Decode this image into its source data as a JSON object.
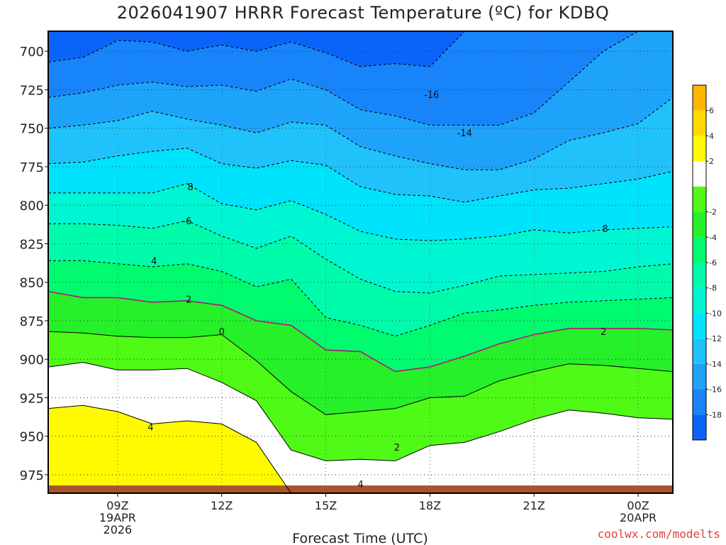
{
  "chart_data": {
    "type": "contour",
    "title": "2026041907 HRRR Forecast Temperature (ºC) for KDBQ",
    "xlabel": "Forecast Time (UTC)",
    "ylabel": "",
    "y_ticks": [
      700,
      725,
      750,
      775,
      800,
      825,
      850,
      875,
      900,
      925,
      950,
      975
    ],
    "ylim": [
      987,
      687
    ],
    "x_ticks": [
      {
        "hour": 9,
        "lines": [
          "09Z",
          "19APR",
          "2026"
        ]
      },
      {
        "hour": 12,
        "lines": [
          "12Z"
        ]
      },
      {
        "hour": 15,
        "lines": [
          "15Z"
        ]
      },
      {
        "hour": 18,
        "lines": [
          "18Z"
        ]
      },
      {
        "hour": 21,
        "lines": [
          "21Z"
        ]
      },
      {
        "hour": 24,
        "lines": [
          "00Z",
          "20APR"
        ]
      }
    ],
    "xlim": [
      7,
      25
    ],
    "grid": true,
    "x": [
      7,
      8,
      9,
      10,
      11,
      12,
      13,
      14,
      15,
      16,
      17,
      18,
      19,
      20,
      21,
      22,
      23,
      24,
      25
    ],
    "contours": [
      {
        "level": -16,
        "pressure": [
          687,
          687,
          687,
          687,
          687,
          687,
          687,
          687,
          687,
          687,
          687,
          687,
          687,
          687,
          687,
          687,
          687,
          687,
          687
        ]
      },
      {
        "level": -14,
        "pressure": [
          707,
          704,
          693,
          694,
          700,
          696,
          700,
          694,
          701,
          710,
          708,
          710,
          687,
          687,
          687,
          687,
          687,
          687,
          687
        ]
      },
      {
        "level": -12,
        "pressure": [
          730,
          727,
          722,
          720,
          723,
          722,
          726,
          718,
          725,
          738,
          742,
          748,
          748,
          748,
          740,
          720,
          700,
          687,
          687
        ]
      },
      {
        "level": -10,
        "pressure": [
          750,
          748,
          745,
          739,
          744,
          748,
          753,
          746,
          748,
          762,
          768,
          773,
          777,
          777,
          770,
          758,
          753,
          747,
          730
        ]
      },
      {
        "level": -8,
        "pressure": [
          773,
          772,
          768,
          765,
          763,
          773,
          776,
          771,
          774,
          788,
          793,
          794,
          798,
          794,
          790,
          789,
          786,
          783,
          778
        ]
      },
      {
        "level": -6,
        "pressure": [
          792,
          792,
          792,
          792,
          786,
          799,
          803,
          797,
          806,
          817,
          822,
          823,
          822,
          820,
          816,
          818,
          816,
          815,
          814
        ]
      },
      {
        "level": -4,
        "pressure": [
          812,
          812,
          813,
          815,
          810,
          820,
          828,
          820,
          835,
          848,
          856,
          857,
          852,
          846,
          845,
          844,
          843,
          840,
          838
        ]
      },
      {
        "level": -2,
        "pressure": [
          836,
          836,
          838,
          840,
          838,
          843,
          853,
          848,
          873,
          878,
          885,
          878,
          870,
          868,
          865,
          863,
          862,
          861,
          860
        ]
      },
      {
        "level": 0,
        "pressure": [
          856,
          860,
          860,
          863,
          862,
          865,
          875,
          878,
          894,
          895,
          908,
          905,
          898,
          890,
          884,
          880,
          880,
          880,
          881
        ]
      },
      {
        "level": 2,
        "pressure": [
          882,
          883,
          885,
          886,
          886,
          884,
          901,
          921,
          936,
          934,
          932,
          925,
          924,
          914,
          908,
          903,
          904,
          906,
          908
        ]
      },
      {
        "level": 4,
        "pressure": [
          905,
          902,
          907,
          907,
          906,
          915,
          927,
          959,
          966,
          965,
          966,
          956,
          954,
          947,
          939,
          933,
          935,
          938,
          939
        ]
      },
      {
        "level": 6,
        "pressure": [
          932,
          930,
          934,
          942,
          940,
          942,
          954,
          987,
          987,
          987,
          987,
          987,
          987,
          987,
          987,
          987,
          987,
          987,
          987
        ]
      }
    ],
    "contour_labels": [
      {
        "text": "-16",
        "x": 18.05,
        "p": 728
      },
      {
        "text": "-14",
        "x": 19.0,
        "p": 753
      },
      {
        "text": "8",
        "x": 11.1,
        "p": 788
      },
      {
        "text": "-6",
        "x": 11.0,
        "p": 810
      },
      {
        "text": "4",
        "x": 10.05,
        "p": 836
      },
      {
        "text": "2",
        "x": 11.05,
        "p": 861
      },
      {
        "text": "0",
        "x": 12.0,
        "p": 882
      },
      {
        "text": "8",
        "x": 23.05,
        "p": 815
      },
      {
        "text": "2",
        "x": 23.0,
        "p": 882
      },
      {
        "text": "4",
        "x": 9.95,
        "p": 944
      },
      {
        "text": "2",
        "x": 17.05,
        "p": 957
      },
      {
        "text": "4",
        "x": 16.0,
        "p": 981
      }
    ],
    "colorbar": {
      "colors": [
        "#0a64fa",
        "#1884fa",
        "#1ea3fb",
        "#1fc2fb",
        "#00e3fd",
        "#00f6d2",
        "#00fbaa",
        "#00fb6e",
        "#25f02a",
        "#4ffa16",
        "#ffffff",
        "#fffa00",
        "#ffd800",
        "#ffb400"
      ],
      "labels": [
        "-18",
        "-16",
        "-14",
        "-12",
        "-10",
        "-8",
        "-6",
        "-4",
        "-2",
        "2",
        "4",
        "6"
      ]
    },
    "ground_color": "#a6532e",
    "freezing_line_color": "#b4157a"
  },
  "credit": "coolwx.com/modelts"
}
